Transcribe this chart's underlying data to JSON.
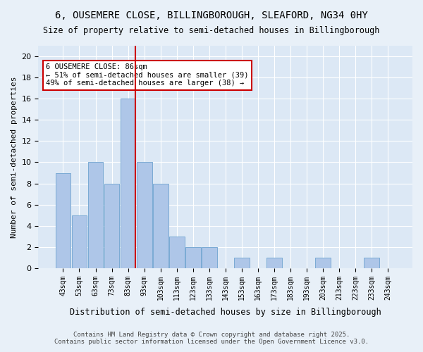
{
  "title": "6, OUSEMERE CLOSE, BILLINGBOROUGH, SLEAFORD, NG34 0HY",
  "subtitle": "Size of property relative to semi-detached houses in Billingborough",
  "xlabel": "Distribution of semi-detached houses by size in Billingborough",
  "ylabel": "Number of semi-detached properties",
  "bins": [
    "43sqm",
    "53sqm",
    "63sqm",
    "73sqm",
    "83sqm",
    "93sqm",
    "103sqm",
    "113sqm",
    "123sqm",
    "133sqm",
    "143sqm",
    "153sqm",
    "163sqm",
    "173sqm",
    "183sqm",
    "193sqm",
    "203sqm",
    "213sqm",
    "223sqm",
    "233sqm",
    "243sqm"
  ],
  "values": [
    9,
    5,
    10,
    8,
    16,
    10,
    8,
    3,
    2,
    2,
    0,
    1,
    0,
    1,
    0,
    0,
    1,
    0,
    0,
    1,
    0
  ],
  "bar_color": "#aec6e8",
  "bar_edge_color": "#7aaad4",
  "vline_x": 4,
  "vline_color": "#cc0000",
  "ylim": [
    0,
    21
  ],
  "yticks": [
    0,
    2,
    4,
    6,
    8,
    10,
    12,
    14,
    16,
    18,
    20
  ],
  "annotation_title": "6 OUSEMERE CLOSE: 86sqm",
  "annotation_line1": "← 51% of semi-detached houses are smaller (39)",
  "annotation_line2": "49% of semi-detached houses are larger (38) →",
  "annotation_box_color": "#cc0000",
  "footer1": "Contains HM Land Registry data © Crown copyright and database right 2025.",
  "footer2": "Contains public sector information licensed under the Open Government Licence v3.0.",
  "bg_color": "#e8f0f8",
  "plot_bg_color": "#dce8f5"
}
